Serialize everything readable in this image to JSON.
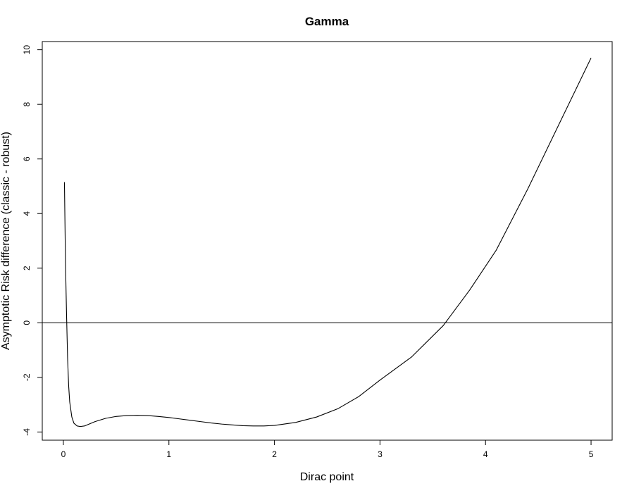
{
  "chart_data": {
    "type": "line",
    "title": "Gamma",
    "xlabel": "Dirac point",
    "ylabel": "Asymptotic Risk difference (classic - robust)",
    "xlim": [
      -0.2,
      5.2
    ],
    "ylim": [
      -4.3,
      10.3
    ],
    "x_ticks": [
      0,
      1,
      2,
      3,
      4,
      5
    ],
    "y_ticks": [
      -4,
      -2,
      0,
      2,
      4,
      6,
      8,
      10
    ],
    "reference_line": {
      "y": 0
    },
    "grid": false,
    "colors": {
      "line": "#000000",
      "axis": "#000000",
      "background": "#ffffff"
    },
    "series": [
      {
        "x": [
          0.01,
          0.02,
          0.03,
          0.04,
          0.05,
          0.06,
          0.08,
          0.1,
          0.13,
          0.16,
          0.2,
          0.25,
          0.3,
          0.4,
          0.5,
          0.6,
          0.7,
          0.8,
          0.9,
          1.0,
          1.1,
          1.2,
          1.3,
          1.4,
          1.5,
          1.6,
          1.7,
          1.8,
          1.9,
          2.0,
          2.2,
          2.4,
          2.6,
          2.8,
          3.0,
          3.3,
          3.6,
          3.85,
          4.1,
          4.4,
          4.7,
          5.0
        ],
        "y": [
          5.15,
          2.2,
          0.3,
          -1.3,
          -2.3,
          -2.9,
          -3.45,
          -3.68,
          -3.78,
          -3.8,
          -3.78,
          -3.7,
          -3.62,
          -3.5,
          -3.43,
          -3.4,
          -3.39,
          -3.4,
          -3.43,
          -3.47,
          -3.52,
          -3.57,
          -3.62,
          -3.67,
          -3.71,
          -3.74,
          -3.77,
          -3.78,
          -3.78,
          -3.76,
          -3.65,
          -3.45,
          -3.15,
          -2.7,
          -2.1,
          -1.25,
          -0.1,
          1.2,
          2.65,
          4.9,
          7.3,
          9.7
        ]
      }
    ]
  }
}
